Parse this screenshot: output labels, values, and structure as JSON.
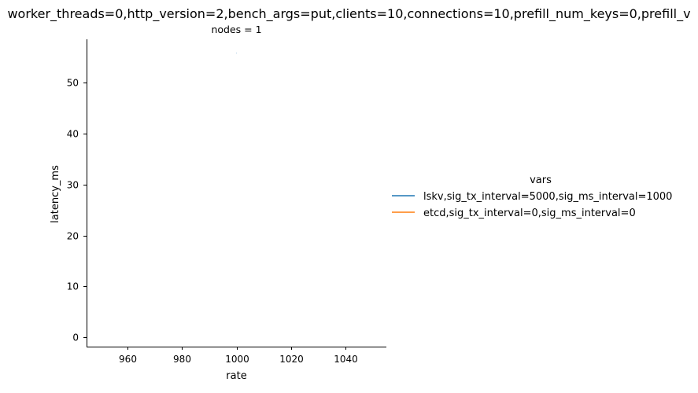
{
  "chart_data": {
    "type": "line",
    "title": "worker_threads=0,http_version=2,bench_args=put,clients=10,connections=10,prefill_num_keys=0,prefill_v",
    "facet_title": "nodes = 1",
    "xlabel": "rate",
    "ylabel": "latency_ms",
    "xlim": [
      945,
      1055
    ],
    "ylim": [
      -1.8,
      58.5
    ],
    "x_ticks": [
      960,
      980,
      1000,
      1020,
      1040
    ],
    "y_ticks": [
      0,
      10,
      20,
      30,
      40,
      50
    ],
    "x_tick_labels": [
      "960",
      "980",
      "1000",
      "1020",
      "1040"
    ],
    "y_tick_labels": [
      "0",
      "10",
      "20",
      "30",
      "40",
      "50"
    ],
    "grid": false,
    "legend": {
      "title": "vars",
      "placement": "right"
    },
    "series": [
      {
        "name": "lskv,sig_tx_interval=5000,sig_ms_interval=1000",
        "color": "#1f77b4",
        "x": [
          1000
        ],
        "y": [
          55.8
        ]
      },
      {
        "name": "etcd,sig_tx_interval=0,sig_ms_interval=0",
        "color": "#ff7f0e",
        "x": [],
        "y": []
      }
    ]
  }
}
